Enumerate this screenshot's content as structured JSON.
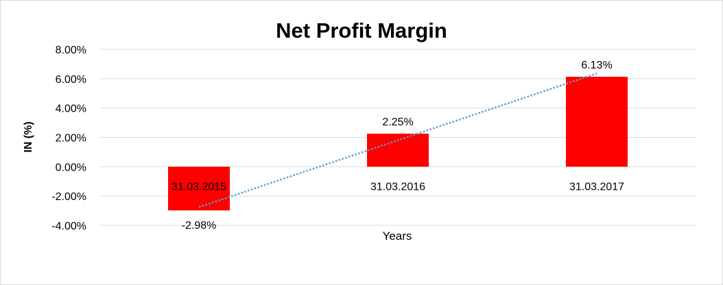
{
  "chart_data": {
    "type": "bar",
    "title": "Net Profit Margin",
    "xlabel": "Years",
    "ylabel": "IN (%)",
    "categories": [
      "31.03.2015",
      "31.03.2016",
      "31.03.2017"
    ],
    "values": [
      -2.98,
      2.25,
      6.13
    ],
    "data_labels": [
      "-2.98%",
      "2.25%",
      "6.13%"
    ],
    "ylim": [
      -4,
      8
    ],
    "yticks": [
      8,
      6,
      4,
      2,
      0,
      -2,
      -4
    ],
    "ytick_labels": [
      "8.00%",
      "6.00%",
      "4.00%",
      "2.00%",
      "0.00%",
      "-2.00%",
      "-4.00%"
    ],
    "grid": true,
    "bar_color": "#ff0000",
    "trendline": {
      "type": "linear",
      "style": "dotted",
      "color": "#5b9bd5"
    }
  }
}
